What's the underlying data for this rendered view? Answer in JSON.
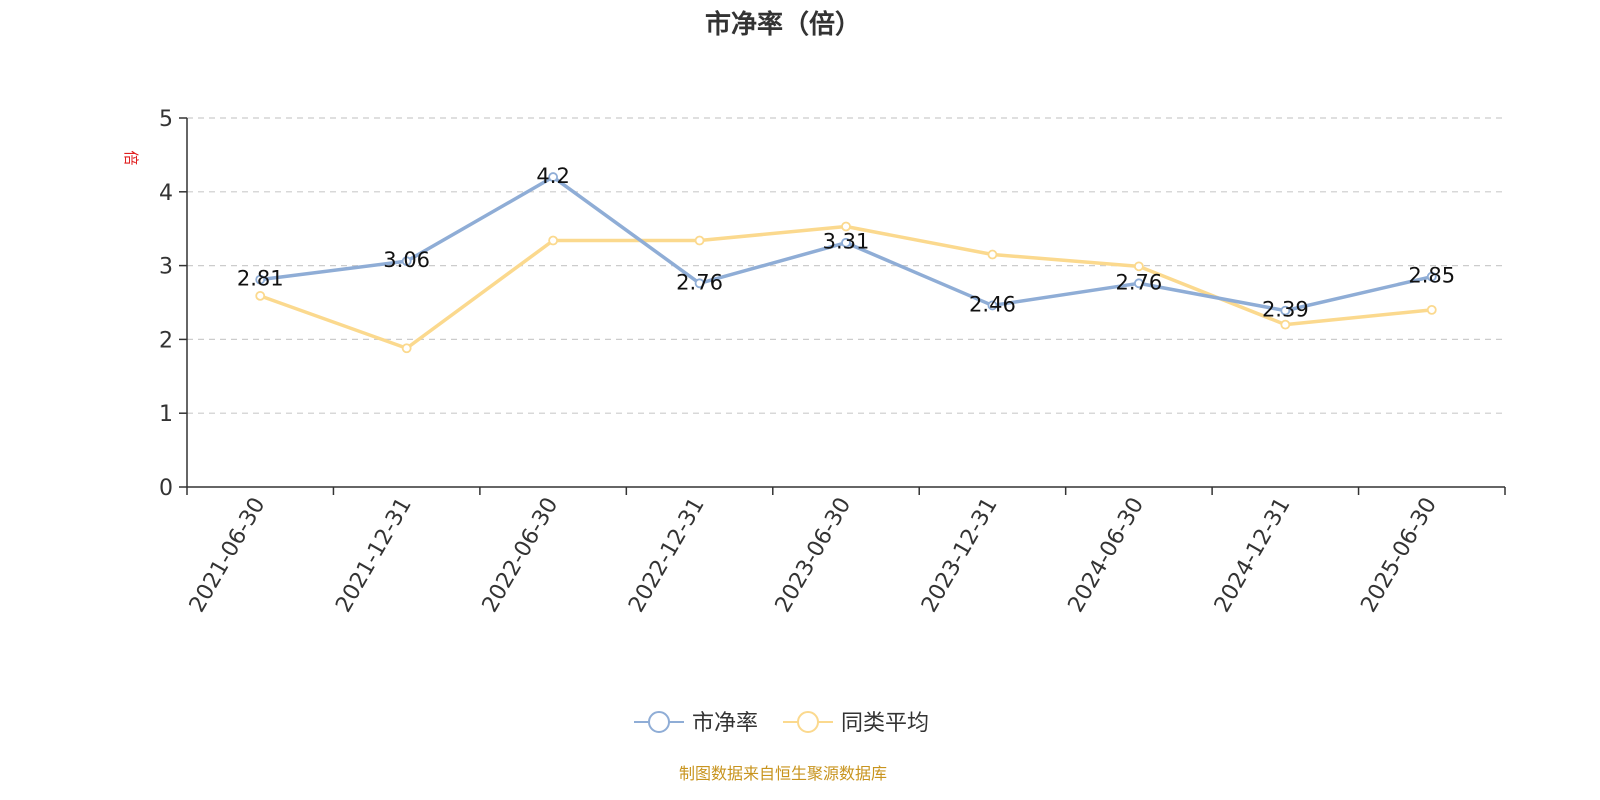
{
  "chart_data": {
    "type": "line",
    "title": "市净率（倍）",
    "ylabel": "倍",
    "xlabel": "",
    "ylim": [
      0,
      5
    ],
    "yticks": [
      0,
      1,
      2,
      3,
      4,
      5
    ],
    "grid": "horizontal-dashed",
    "legend_position": "bottom-center",
    "categories": [
      "2021-06-30",
      "2021-12-31",
      "2022-06-30",
      "2022-12-31",
      "2023-06-30",
      "2023-12-31",
      "2024-06-30",
      "2024-12-31",
      "2025-06-30"
    ],
    "series": [
      {
        "name": "市净率",
        "color": "#8fadd6",
        "values": [
          2.81,
          3.06,
          4.2,
          2.76,
          3.31,
          2.46,
          2.76,
          2.39,
          2.85
        ],
        "data_labels": [
          "2.81",
          "3.06",
          "4.2",
          "2.76",
          "3.31",
          "2.46",
          "2.76",
          "2.39",
          "2.85"
        ]
      },
      {
        "name": "同类平均",
        "color": "#fbd98e",
        "values": [
          2.59,
          1.88,
          3.34,
          3.34,
          3.53,
          3.15,
          2.99,
          2.2,
          2.4
        ]
      }
    ]
  },
  "footer": {
    "source": "制图数据来自恒生聚源数据库"
  }
}
